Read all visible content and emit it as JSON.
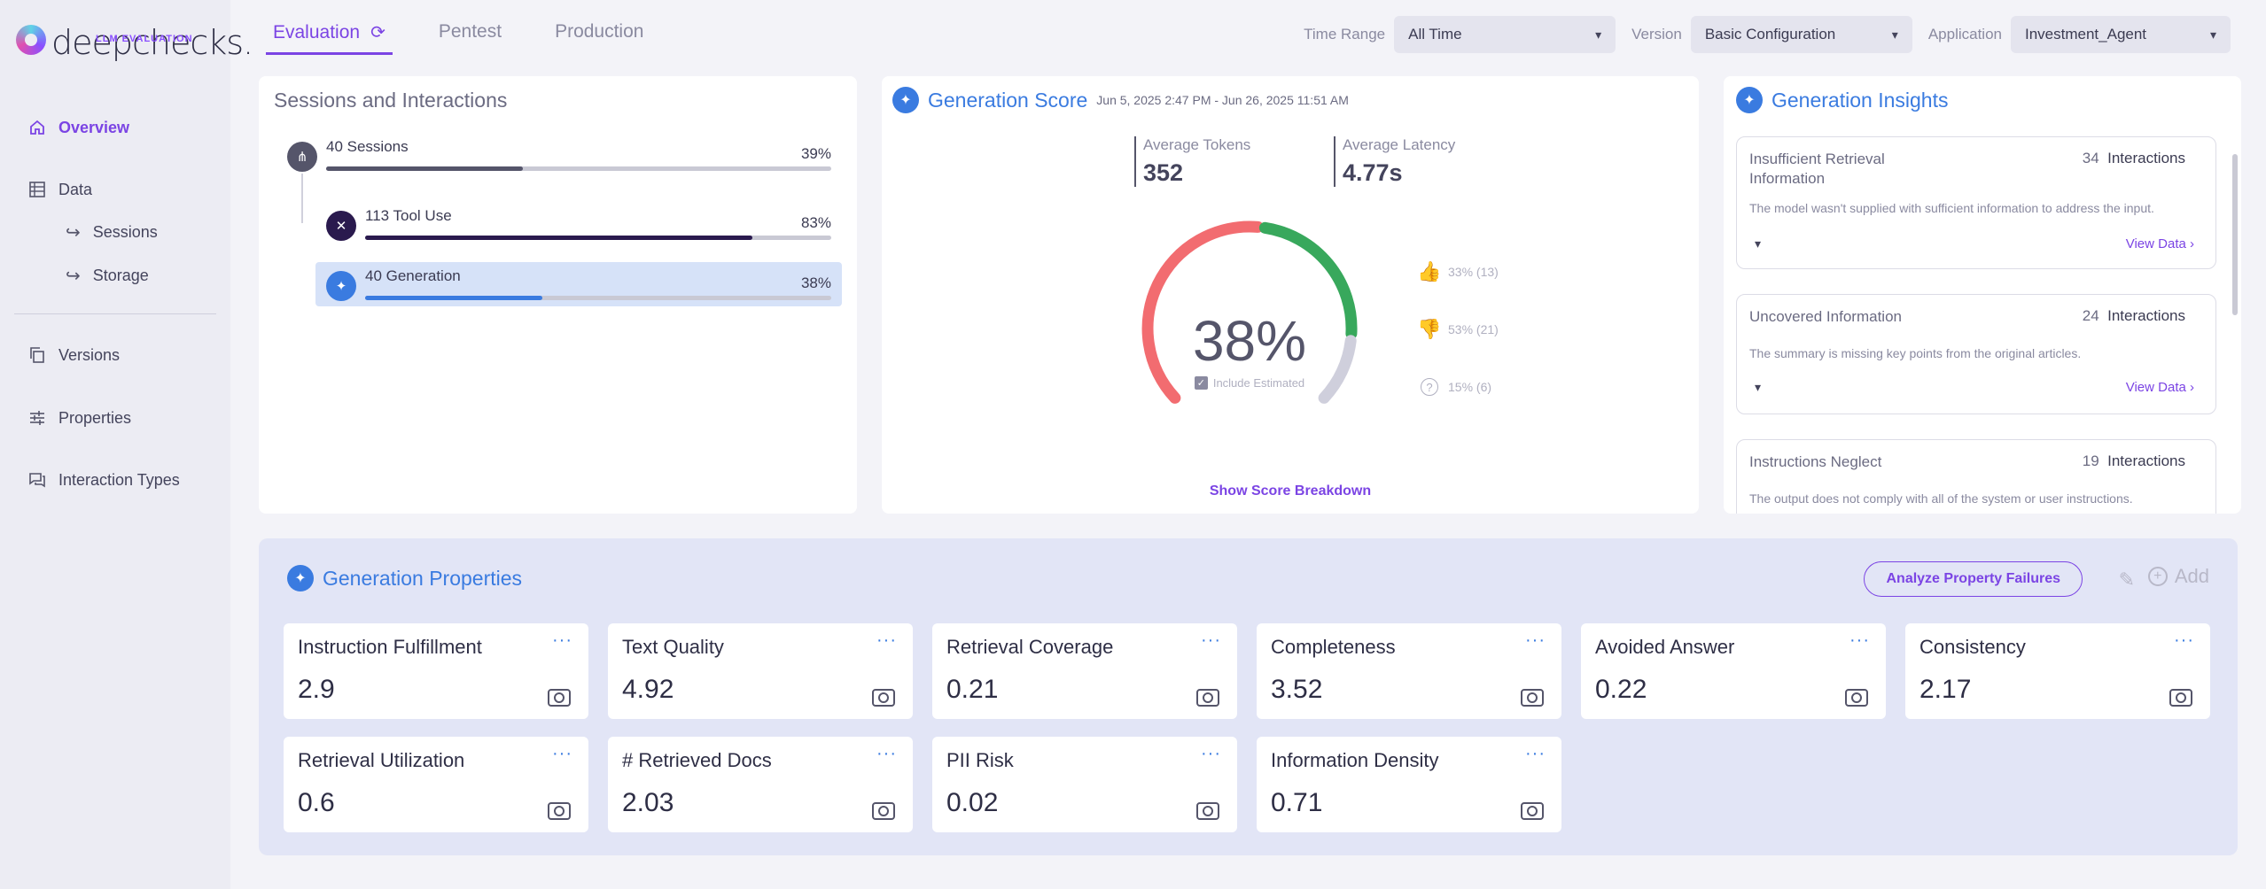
{
  "brand": {
    "name": "deepchecks.",
    "sub": "LLM EVALUATION"
  },
  "sidebar": {
    "items": [
      {
        "label": "Overview",
        "icon": "home-icon"
      },
      {
        "label": "Data",
        "icon": "table-icon"
      },
      {
        "label": "Sessions",
        "icon": "sub-arrow-icon"
      },
      {
        "label": "Storage",
        "icon": "sub-arrow-icon"
      },
      {
        "label": "Versions",
        "icon": "copy-icon"
      },
      {
        "label": "Properties",
        "icon": "sliders-icon"
      },
      {
        "label": "Interaction Types",
        "icon": "chat-icon"
      }
    ]
  },
  "tabs": [
    "Evaluation",
    "Pentest",
    "Production"
  ],
  "filters": {
    "time_range": {
      "label": "Time Range",
      "value": "All Time"
    },
    "version": {
      "label": "Version",
      "value": "Basic Configuration"
    },
    "application": {
      "label": "Application",
      "value": "Investment_Agent"
    }
  },
  "sessions": {
    "title": "Sessions and Interactions",
    "rows": [
      {
        "label": "40 Sessions",
        "pct": "39%",
        "fill": 0.39
      },
      {
        "label": "113 Tool Use",
        "pct": "83%",
        "fill": 0.83
      },
      {
        "label": "40 Generation",
        "pct": "38%",
        "fill": 0.38
      }
    ]
  },
  "score": {
    "title": "Generation Score",
    "range": "Jun 5, 2025 2:47 PM - Jun 26, 2025 11:51 AM",
    "avg_tokens_label": "Average Tokens",
    "avg_tokens": "352",
    "avg_latency_label": "Average Latency",
    "avg_latency": "4.77s",
    "value": "38%",
    "include_estimated": "Include Estimated",
    "good": "33% (13)",
    "bad": "53% (21)",
    "unknown": "15% (6)",
    "good_fraction": 0.33,
    "bad_fraction": 0.53,
    "unknown_fraction": 0.15,
    "breakdown": "Show Score Breakdown"
  },
  "insights": {
    "title": "Generation Insights",
    "items": [
      {
        "title": "Insufficient Retrieval Information",
        "count": "34",
        "count_label": "Interactions",
        "desc": "The model wasn't supplied with sufficient information to address the input.",
        "view": "View Data ›"
      },
      {
        "title": "Uncovered Information",
        "count": "24",
        "count_label": "Interactions",
        "desc": "The summary is missing key points from the original articles.",
        "view": "View Data ›"
      },
      {
        "title": "Instructions Neglect",
        "count": "19",
        "count_label": "Interactions",
        "desc": "The output does not comply with all of the system or user instructions."
      }
    ]
  },
  "properties": {
    "title": "Generation Properties",
    "analyze": "Analyze Property Failures",
    "add": "Add",
    "items": [
      {
        "name": "Instruction Fulfillment",
        "value": "2.9"
      },
      {
        "name": "Text Quality",
        "value": "4.92"
      },
      {
        "name": "Retrieval Coverage",
        "value": "0.21"
      },
      {
        "name": "Completeness",
        "value": "3.52"
      },
      {
        "name": "Avoided Answer",
        "value": "0.22"
      },
      {
        "name": "Consistency",
        "value": "2.17"
      },
      {
        "name": "Retrieval Utilization",
        "value": "0.6"
      },
      {
        "name": "# Retrieved Docs",
        "value": "2.03"
      },
      {
        "name": "PII Risk",
        "value": "0.02"
      },
      {
        "name": "Information Density",
        "value": "0.71"
      }
    ]
  }
}
